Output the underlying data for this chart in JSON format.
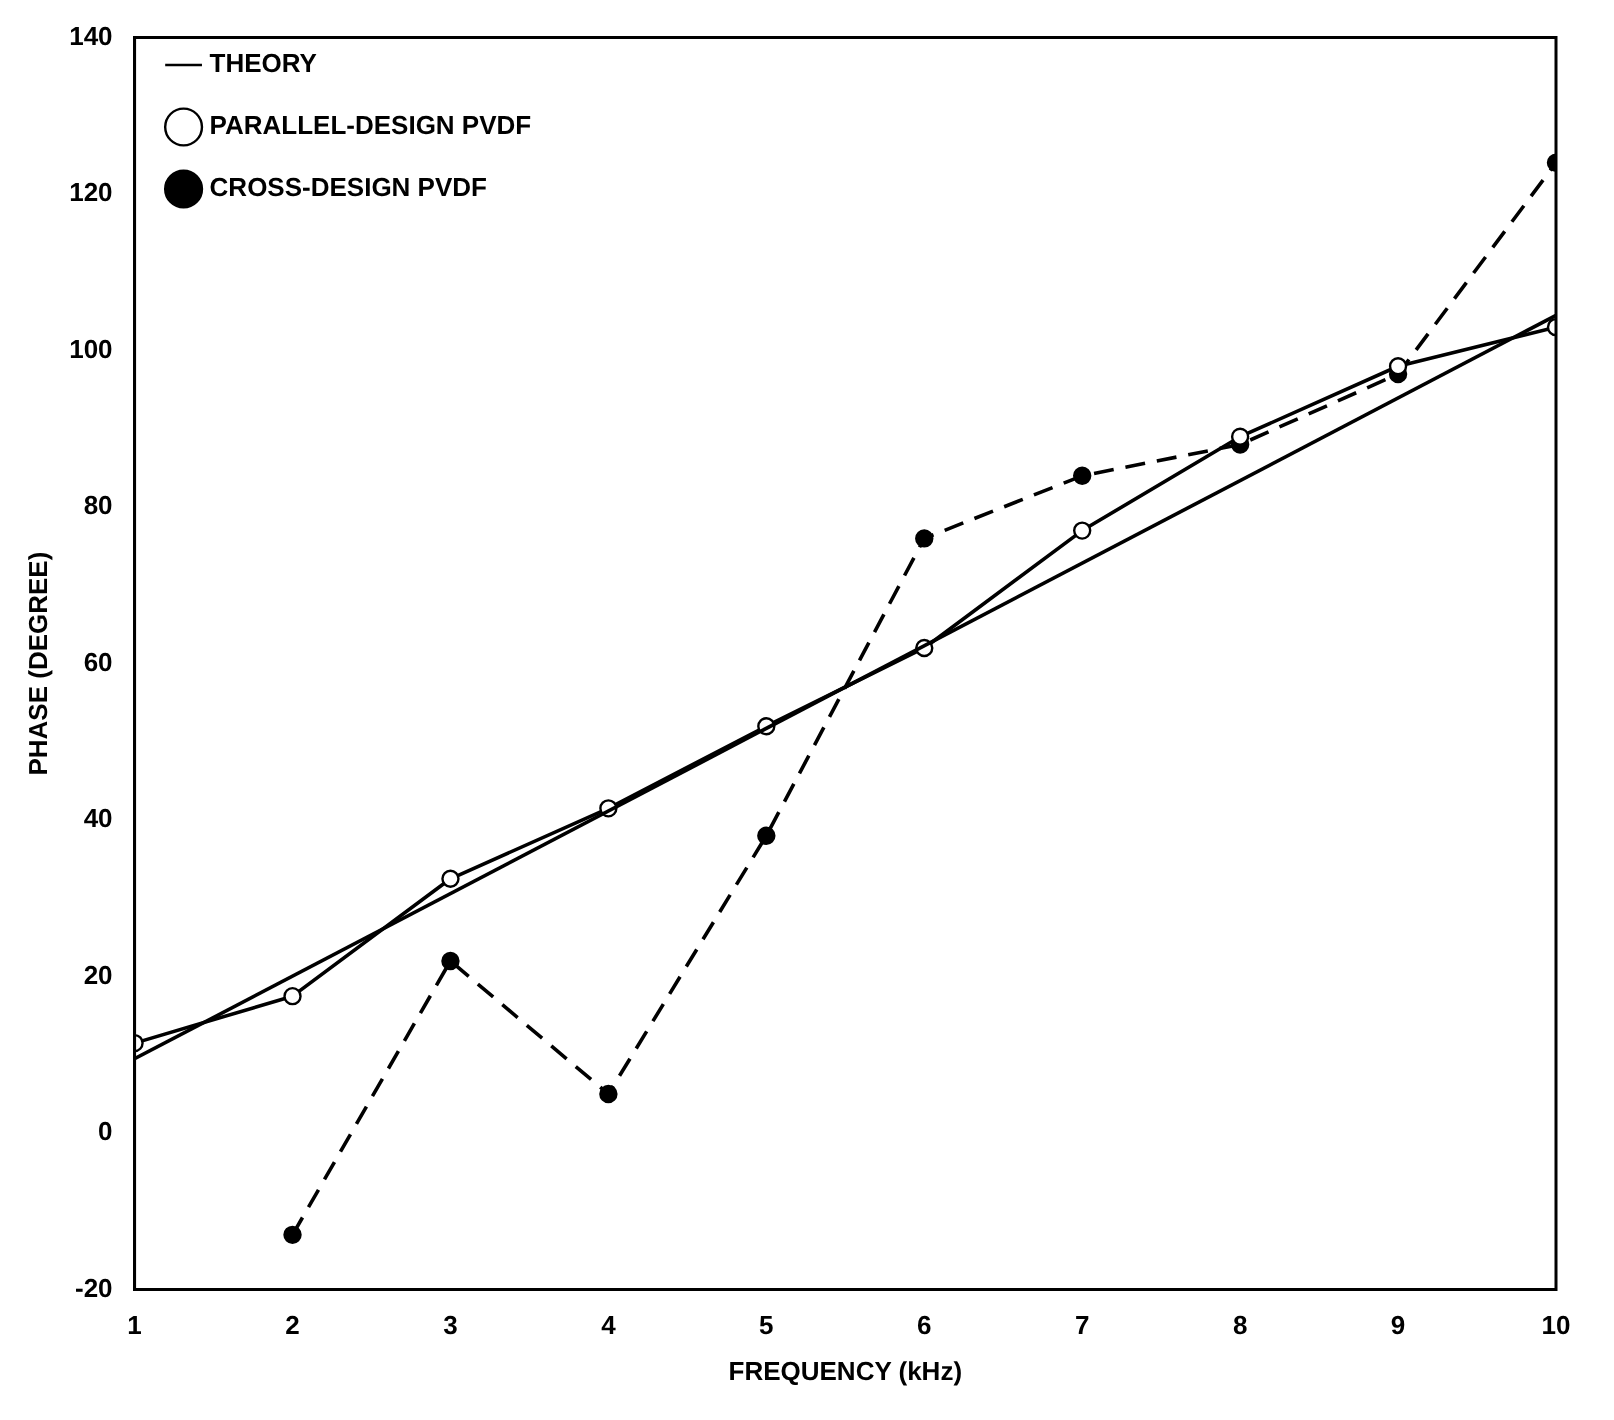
{
  "chart_data": {
    "type": "line",
    "xlabel": "FREQUENCY (kHz)",
    "ylabel": "PHASE (DEGREE)",
    "xlim": [
      1,
      10
    ],
    "xticks": [
      1,
      2,
      3,
      4,
      5,
      6,
      7,
      8,
      9,
      10
    ],
    "ylim": [
      -20,
      140
    ],
    "yticks": [
      -20,
      0,
      20,
      40,
      60,
      80,
      100,
      120,
      140
    ],
    "grid": false,
    "legend": "top left",
    "series": [
      {
        "name": "THEORY",
        "color": "#000000",
        "x": [
          1,
          10
        ],
        "values": [
          9.5,
          104.5
        ],
        "marker": "none",
        "line_style": "solid"
      },
      {
        "name": "PARALLEL-DESIGN PVDF",
        "color": "#000000",
        "x": [
          1,
          2,
          3,
          4,
          5,
          6,
          7,
          8,
          9,
          10
        ],
        "values": [
          11.5,
          17.5,
          32.5,
          41.5,
          52,
          62,
          77,
          89,
          98,
          103
        ],
        "marker": "circle",
        "line_style": "solid"
      },
      {
        "name": "CROSS-DESIGN PVDF",
        "color": "#000000",
        "x": [
          2,
          3,
          4,
          5,
          6,
          7,
          8,
          9,
          10
        ],
        "values": [
          -13,
          22,
          5,
          38,
          76,
          84,
          88,
          97,
          124
        ],
        "marker": "circle",
        "line_style": "dashed"
      }
    ]
  }
}
